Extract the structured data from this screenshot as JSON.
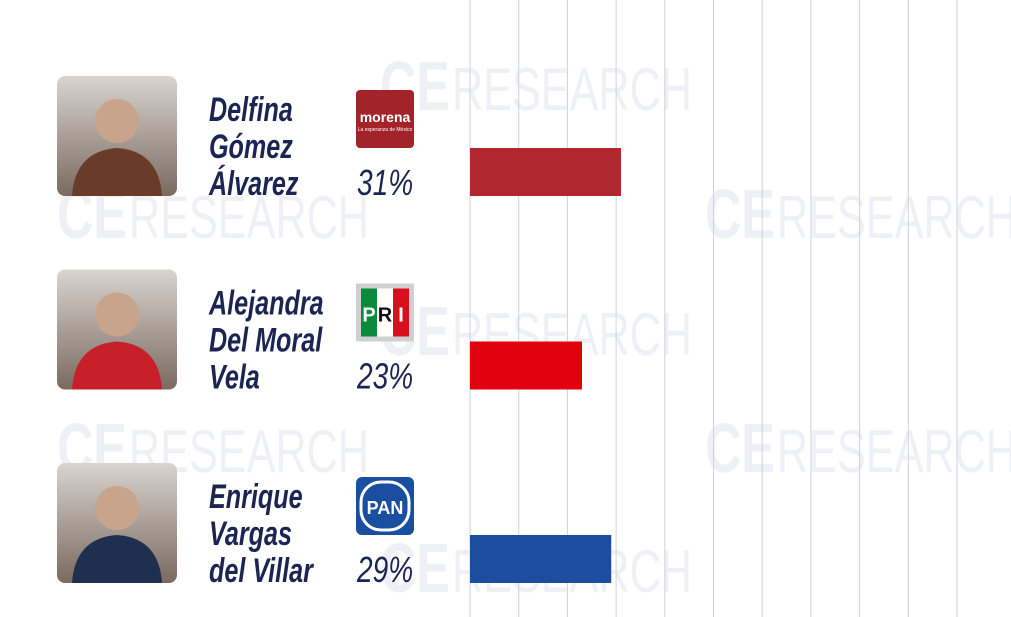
{
  "chart_data": {
    "type": "bar",
    "orientation": "horizontal",
    "categories": [
      [
        "Delfina",
        "Gómez",
        "Álvarez"
      ],
      [
        "Alejandra",
        "Del Moral",
        "Vela"
      ],
      [
        "Enrique",
        "Vargas",
        "del Villar"
      ]
    ],
    "values": [
      31,
      23,
      29
    ],
    "value_labels": [
      "31%",
      "23%",
      "29%"
    ],
    "colors": [
      "#b0272f",
      "#e0000e",
      "#1b4f9e"
    ],
    "party_logos": [
      {
        "text": "morena",
        "subtitle": "La esperanza de México"
      },
      {
        "text": [
          "P",
          "R",
          "I"
        ]
      },
      {
        "text": "PAN"
      }
    ],
    "watermark": {
      "bold": "CE",
      "rest": "RESEARCH"
    },
    "xlim": [
      0,
      100
    ],
    "xticks": [
      0,
      10,
      20,
      30,
      40,
      50,
      60,
      70,
      80,
      90,
      100
    ],
    "grid": true
  }
}
